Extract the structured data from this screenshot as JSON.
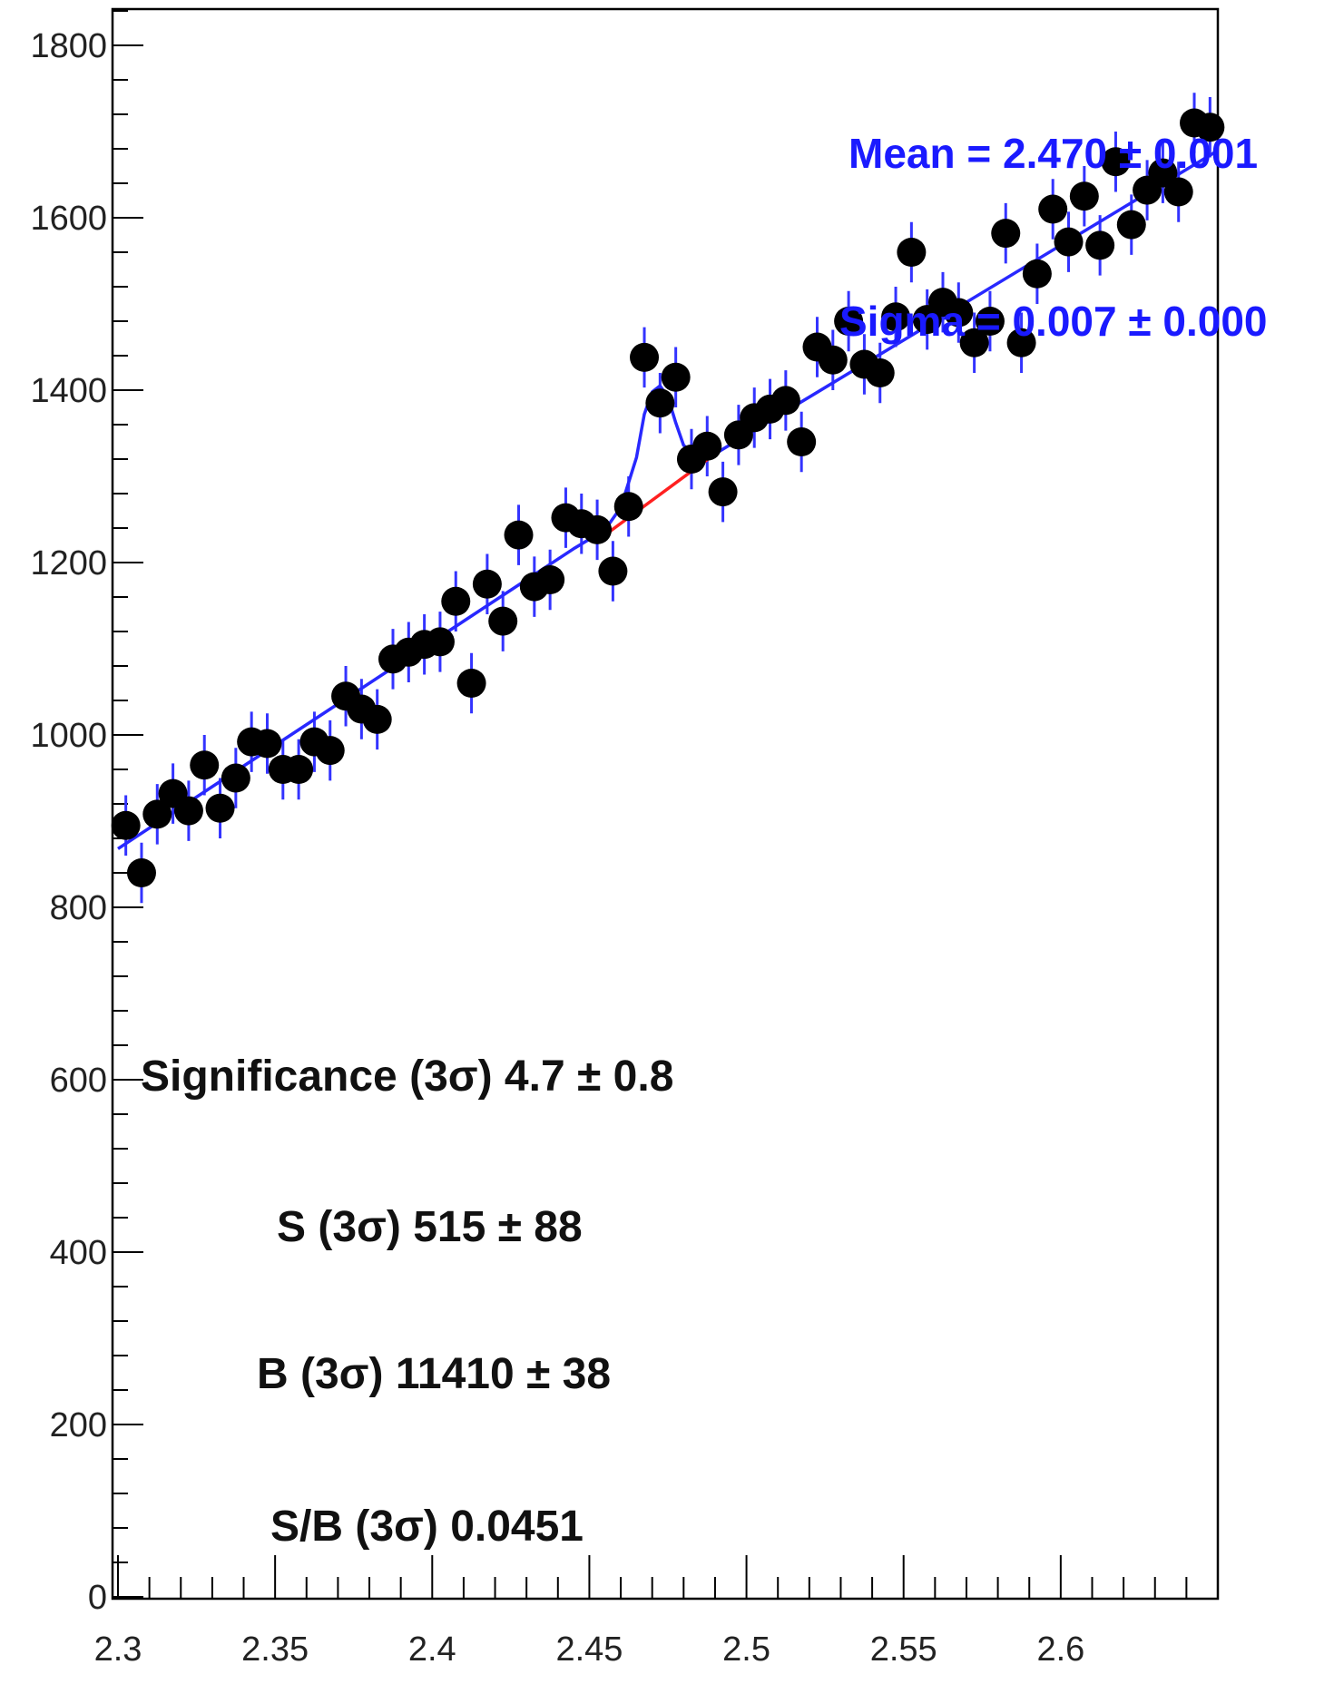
{
  "chart_data": {
    "type": "scatter",
    "title": "",
    "xlabel": "",
    "ylabel": "",
    "xlim": [
      2.3,
      2.65
    ],
    "ylim": [
      0,
      1850
    ],
    "x_ticks": [
      2.3,
      2.35,
      2.4,
      2.45,
      2.5,
      2.55,
      2.6
    ],
    "x_tick_labels": [
      "2.3",
      "2.35",
      "2.4",
      "2.45",
      "2.5",
      "2.55",
      "2.6"
    ],
    "y_ticks": [
      0,
      200,
      400,
      600,
      800,
      1000,
      1200,
      1400,
      1600,
      1800
    ],
    "y_tick_labels": [
      "0",
      "200",
      "400",
      "600",
      "800",
      "1000",
      "1200",
      "1400",
      "1600",
      "1800"
    ],
    "grid": false,
    "series": [
      {
        "kind": "points_with_errors",
        "color": "#000000",
        "error_color": "#3333ff",
        "error": 35,
        "points": [
          [
            2.3025,
            895
          ],
          [
            2.3075,
            840
          ],
          [
            2.3125,
            908
          ],
          [
            2.3175,
            932
          ],
          [
            2.3225,
            912
          ],
          [
            2.3275,
            965
          ],
          [
            2.3325,
            915
          ],
          [
            2.3375,
            950
          ],
          [
            2.3425,
            992
          ],
          [
            2.3475,
            990
          ],
          [
            2.3525,
            960
          ],
          [
            2.3575,
            960
          ],
          [
            2.3625,
            992
          ],
          [
            2.3675,
            982
          ],
          [
            2.3725,
            1045
          ],
          [
            2.3775,
            1030
          ],
          [
            2.3825,
            1018
          ],
          [
            2.3875,
            1088
          ],
          [
            2.3925,
            1096
          ],
          [
            2.3975,
            1105
          ],
          [
            2.4025,
            1108
          ],
          [
            2.4075,
            1155
          ],
          [
            2.4125,
            1060
          ],
          [
            2.4175,
            1175
          ],
          [
            2.4225,
            1132
          ],
          [
            2.4275,
            1232
          ],
          [
            2.4325,
            1172
          ],
          [
            2.4375,
            1180
          ],
          [
            2.4425,
            1252
          ],
          [
            2.4475,
            1245
          ],
          [
            2.4525,
            1238
          ],
          [
            2.4575,
            1190
          ],
          [
            2.4625,
            1265
          ],
          [
            2.4675,
            1438
          ],
          [
            2.4725,
            1385
          ],
          [
            2.4775,
            1415
          ],
          [
            2.4825,
            1320
          ],
          [
            2.4875,
            1335
          ],
          [
            2.4925,
            1282
          ],
          [
            2.4975,
            1348
          ],
          [
            2.5025,
            1368
          ],
          [
            2.5075,
            1378
          ],
          [
            2.5125,
            1388
          ],
          [
            2.5175,
            1340
          ],
          [
            2.5225,
            1450
          ],
          [
            2.5275,
            1435
          ],
          [
            2.5325,
            1480
          ],
          [
            2.5375,
            1430
          ],
          [
            2.5425,
            1420
          ],
          [
            2.5475,
            1485
          ],
          [
            2.5525,
            1560
          ],
          [
            2.5575,
            1482
          ],
          [
            2.5625,
            1502
          ],
          [
            2.5675,
            1490
          ],
          [
            2.5725,
            1455
          ],
          [
            2.5775,
            1480
          ],
          [
            2.5825,
            1582
          ],
          [
            2.5875,
            1455
          ],
          [
            2.5925,
            1535
          ],
          [
            2.5975,
            1610
          ],
          [
            2.6025,
            1572
          ],
          [
            2.6075,
            1625
          ],
          [
            2.6125,
            1568
          ],
          [
            2.6175,
            1665
          ],
          [
            2.6225,
            1592
          ],
          [
            2.6275,
            1632
          ],
          [
            2.6325,
            1652
          ],
          [
            2.6375,
            1630
          ],
          [
            2.6425,
            1710
          ],
          [
            2.6475,
            1705
          ]
        ]
      },
      {
        "kind": "background_fit",
        "color": "#ff2020",
        "x": [
          2.455,
          2.49
        ],
        "y": [
          1232,
          1326
        ]
      },
      {
        "kind": "total_fit",
        "color": "#2828ff",
        "x": [
          2.3,
          2.445,
          2.455,
          2.46,
          2.465,
          2.4675,
          2.47,
          2.4725,
          2.475,
          2.4775,
          2.48,
          2.485,
          2.49,
          2.65
        ],
        "y": [
          868,
          1216,
          1238,
          1264,
          1322,
          1372,
          1398,
          1405,
          1392,
          1362,
          1336,
          1320,
          1326,
          1678
        ]
      }
    ],
    "annotations": {
      "mean": "Mean = 2.470 ± 0.001",
      "sigma": "Sigma = 0.007 ± 0.000",
      "significance": "Significance (3σ) 4.7 ± 0.8",
      "signal": "S (3σ) 515 ± 88",
      "background": "B (3σ) 11410 ± 38",
      "ratio": "S/B (3σ) 0.0451"
    }
  }
}
